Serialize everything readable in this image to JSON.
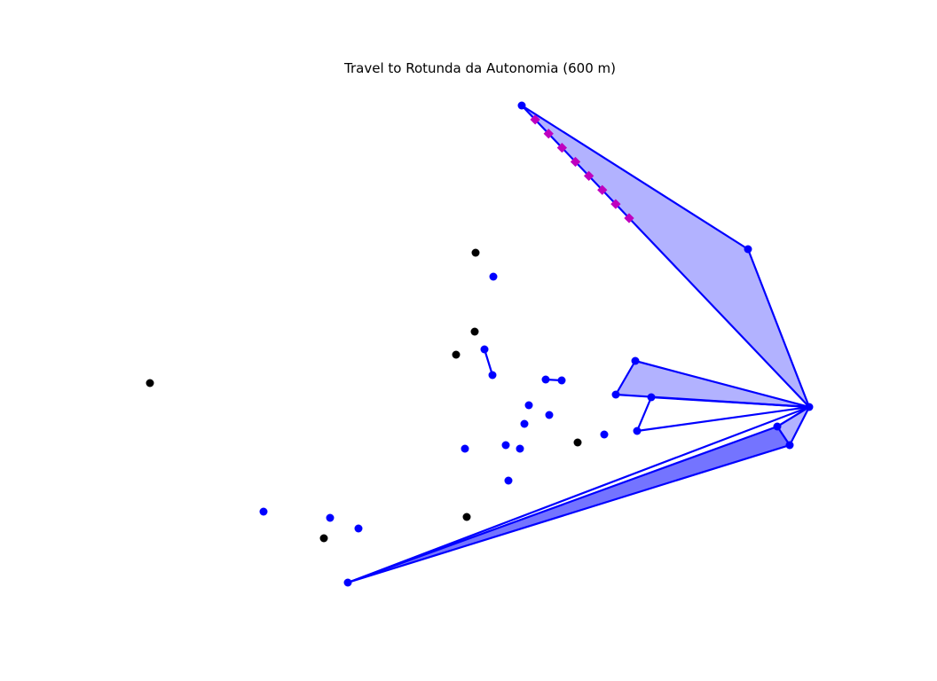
{
  "title": "Travel to Rotunda da Autonomia (600 m)",
  "colors": {
    "route": "#0000ff",
    "fill": "#0000ff",
    "marker": "#0000ff",
    "other_marker": "#000000",
    "path_marker": "#bf00bf"
  }
}
